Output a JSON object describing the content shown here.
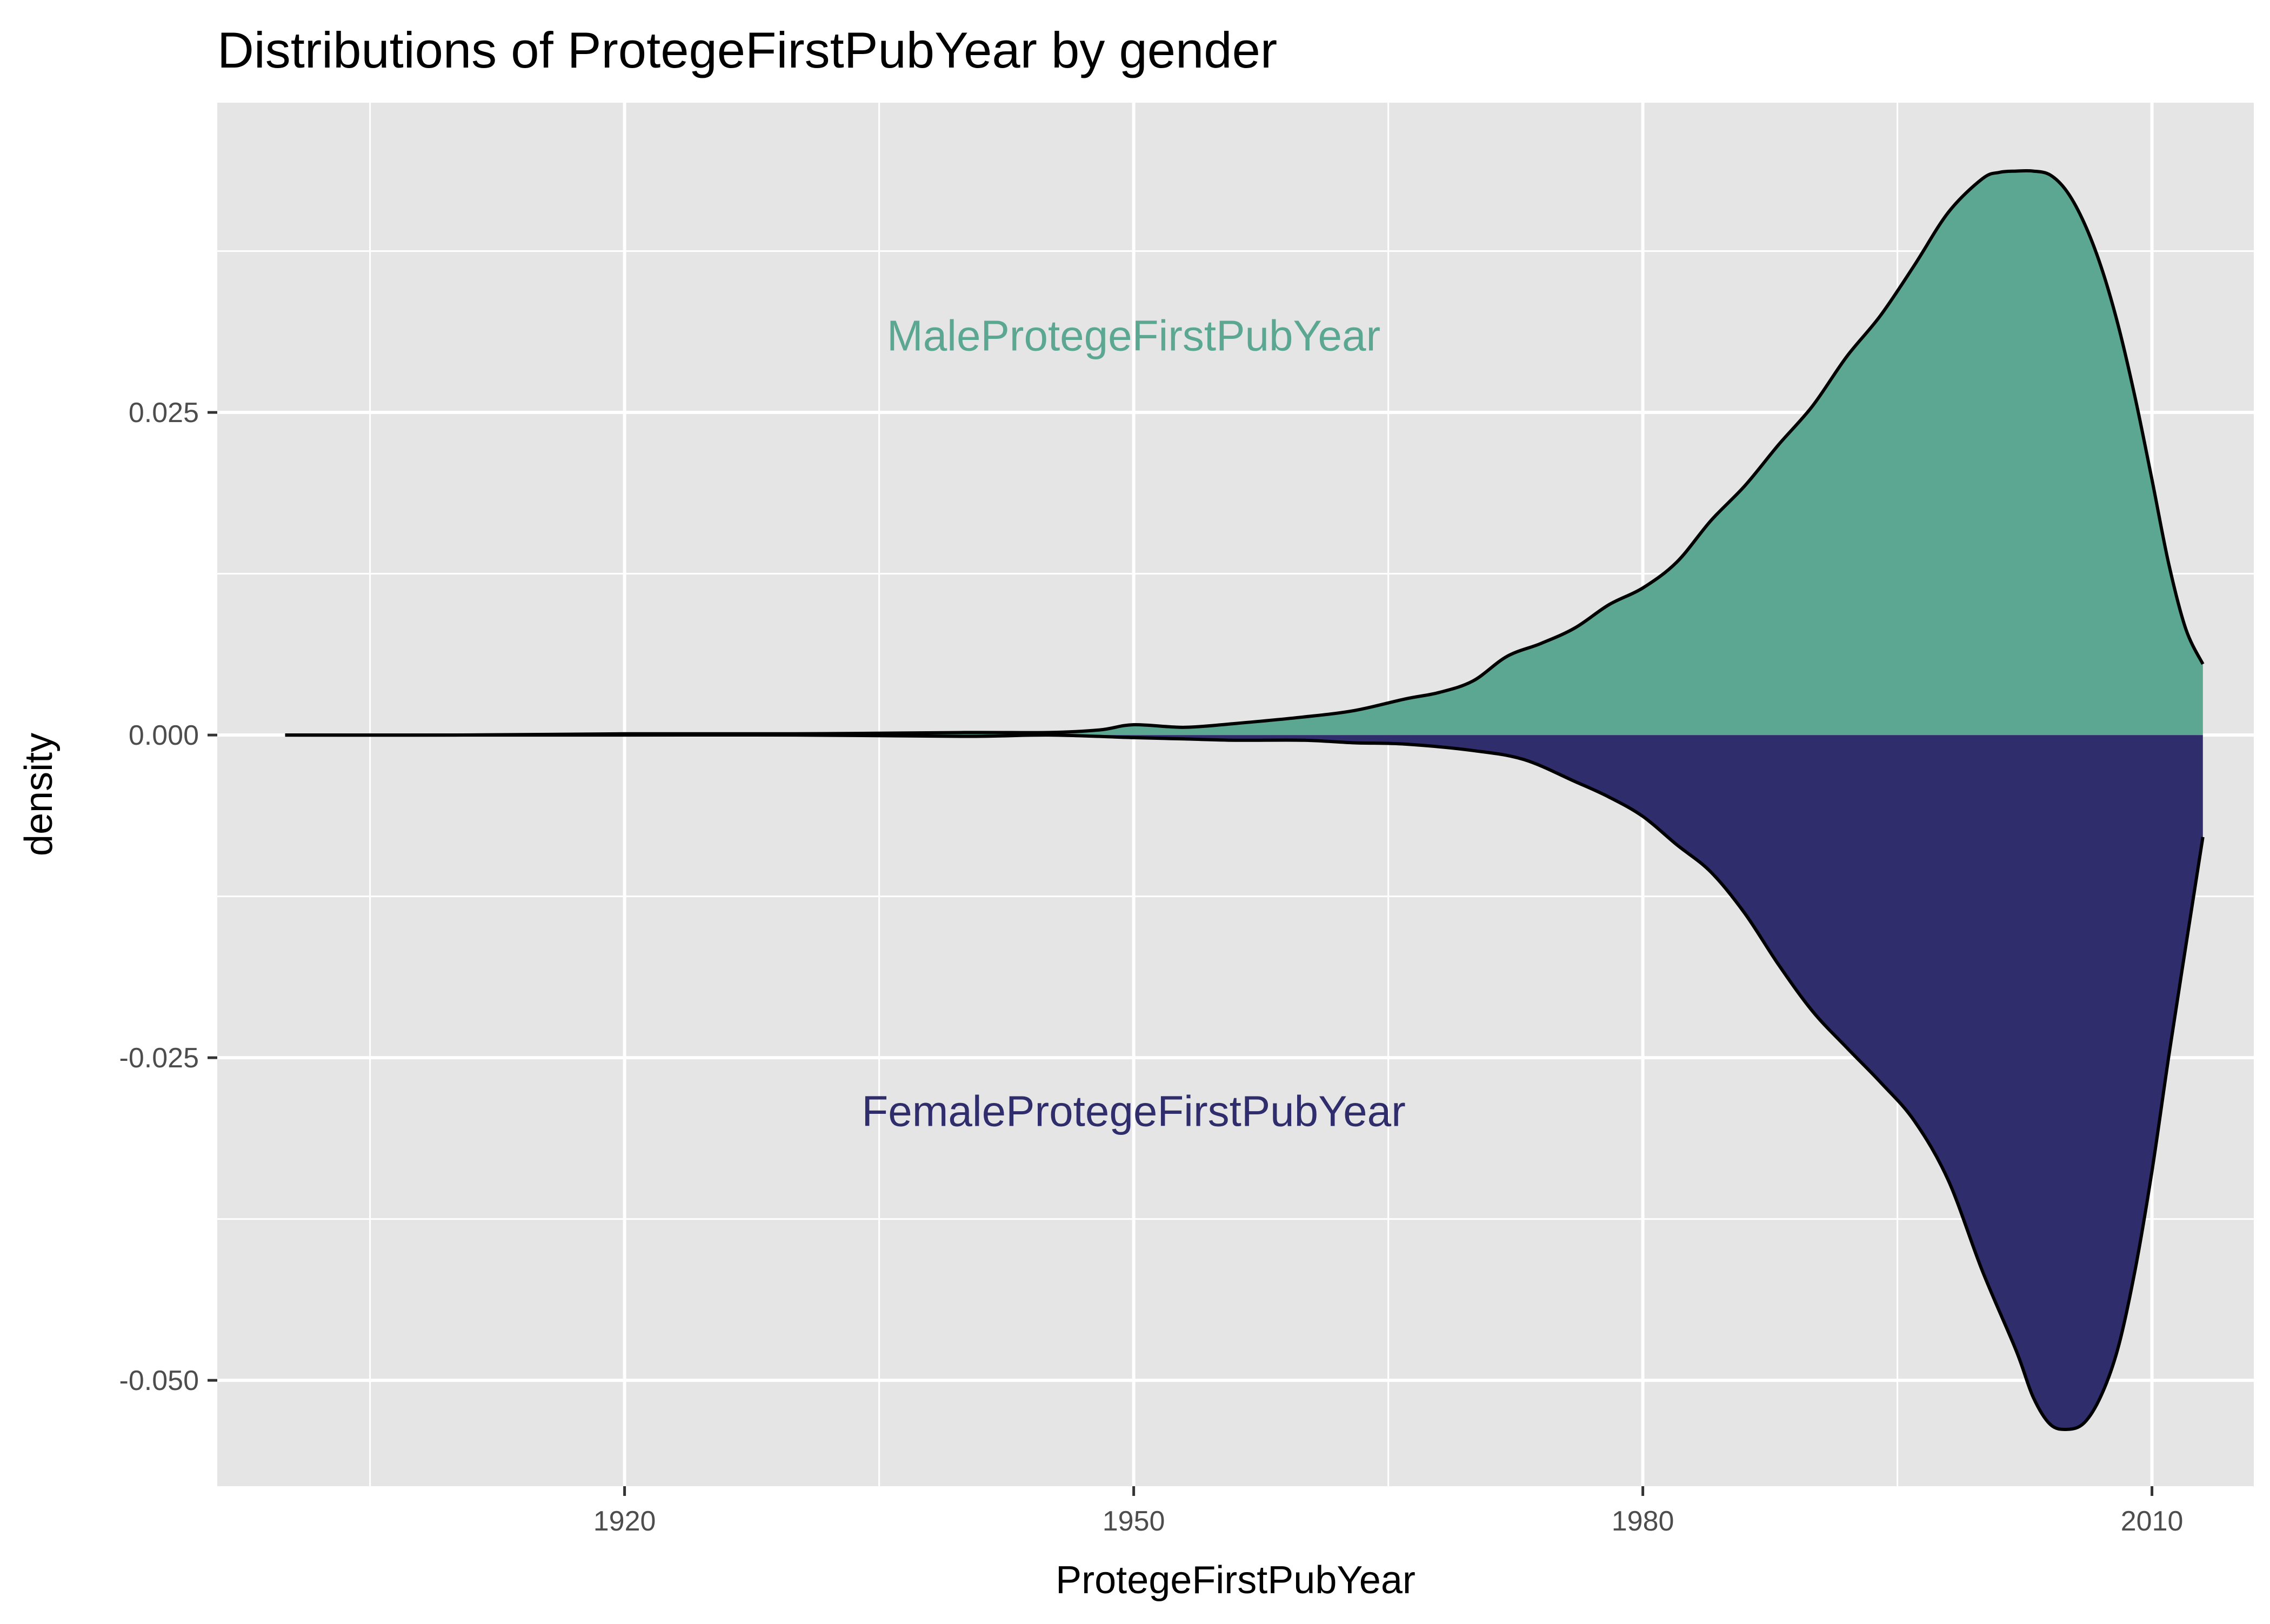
{
  "chart_data": {
    "type": "area",
    "title": "Distributions of ProtegeFirstPubYear by gender",
    "xlabel": "ProtegeFirstPubYear",
    "ylabel": "density",
    "xlim": [
      1896,
      2016
    ],
    "ylim": [
      -0.0582,
      0.049
    ],
    "x_ticks": [
      1920,
      1950,
      1980,
      2010
    ],
    "x_tick_labels": [
      "1920",
      "1950",
      "1980",
      "2010"
    ],
    "y_ticks": [
      0.025,
      0.0,
      -0.025,
      -0.05
    ],
    "y_tick_labels": [
      "0.025",
      "0.000",
      "-0.025",
      "-0.050"
    ],
    "grid": true,
    "legend": "none",
    "background": "#e5e5e5",
    "series": [
      {
        "name": "MaleProtegeFirstPubYear",
        "color": "#5ba791",
        "label_at": [
          1950,
          0.0298
        ],
        "x": [
          1900,
          1910,
          1920,
          1930,
          1940,
          1945,
          1948,
          1950,
          1953,
          1956,
          1960,
          1963,
          1966,
          1968,
          1970,
          1972,
          1974,
          1976,
          1978,
          1980,
          1982,
          1984,
          1986,
          1988,
          1990,
          1992,
          1994,
          1996,
          1998,
          2000,
          2001,
          2002,
          2003,
          2004,
          2005,
          2006,
          2007,
          2008,
          2009,
          2010,
          2011,
          2012,
          2013
        ],
        "y": [
          0.0,
          0.0,
          0.0001,
          0.0001,
          0.0002,
          0.0002,
          0.0004,
          0.0008,
          0.0006,
          0.0009,
          0.0014,
          0.0019,
          0.0028,
          0.0033,
          0.0042,
          0.0061,
          0.0071,
          0.0083,
          0.0101,
          0.0114,
          0.0134,
          0.0166,
          0.0193,
          0.0225,
          0.0255,
          0.0293,
          0.0325,
          0.0364,
          0.0405,
          0.0431,
          0.0436,
          0.0437,
          0.0437,
          0.0434,
          0.0421,
          0.0397,
          0.0363,
          0.0318,
          0.0262,
          0.0198,
          0.0132,
          0.0082,
          0.0055
        ]
      },
      {
        "name": "FemaleProtegeFirstPubYear",
        "color": "#302d6c",
        "label_at": [
          1950,
          -0.0303
        ],
        "x": [
          1900,
          1910,
          1920,
          1930,
          1940,
          1945,
          1950,
          1953,
          1956,
          1960,
          1963,
          1966,
          1970,
          1973,
          1976,
          1978,
          1980,
          1982,
          1984,
          1986,
          1988,
          1990,
          1992,
          1994,
          1996,
          1998,
          2000,
          2002,
          2003,
          2004,
          2005,
          2006,
          2007,
          2008,
          2009,
          2010,
          2011,
          2012,
          2013
        ],
        "y": [
          0.0,
          0.0,
          0.0,
          0.0,
          -0.0001,
          0.0,
          -0.0002,
          -0.0003,
          -0.0004,
          -0.0004,
          -0.0006,
          -0.0007,
          -0.0012,
          -0.0019,
          -0.0036,
          -0.0048,
          -0.0063,
          -0.0085,
          -0.0106,
          -0.0138,
          -0.0178,
          -0.0214,
          -0.0242,
          -0.0269,
          -0.0299,
          -0.0345,
          -0.0415,
          -0.0477,
          -0.0513,
          -0.0534,
          -0.0538,
          -0.0533,
          -0.0512,
          -0.0475,
          -0.0415,
          -0.0338,
          -0.0248,
          -0.0163,
          -0.0079
        ]
      }
    ]
  }
}
